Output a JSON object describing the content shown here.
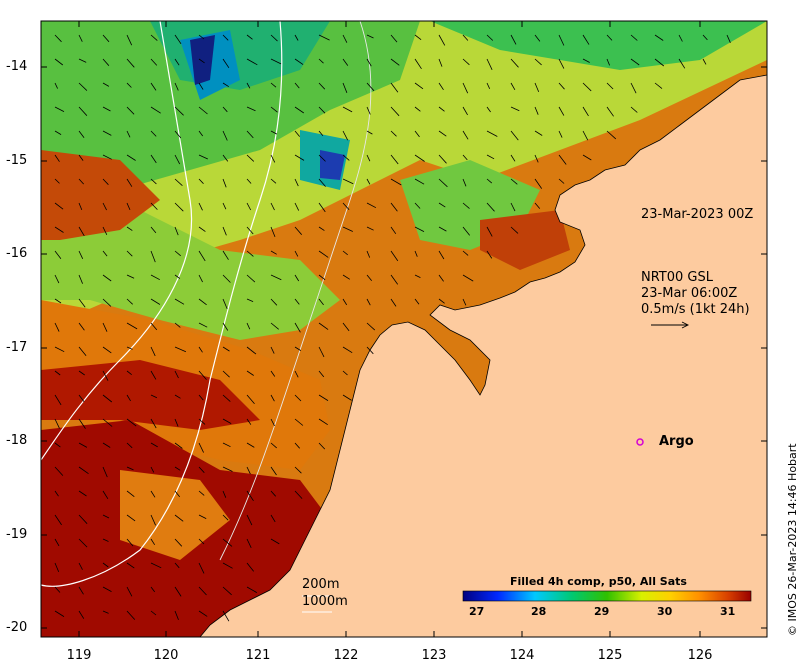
{
  "annotations": {
    "track_label": "23-Mar-2023 00Z",
    "current_title": "NRT00 GSL",
    "current_time": "23-Mar 06:00Z",
    "current_scale": "0.5m/s (1kt 24h)",
    "argo_label": "Argo",
    "contour_200": "200m",
    "contour_1000": "1000m"
  },
  "colorbar": {
    "title": "Filled 4h comp, p50, All Sats",
    "ticks": [
      "27",
      "28",
      "29",
      "30",
      "31"
    ]
  },
  "credit": "© IMOS 26-Mar-2023 14:46 Hobart",
  "axes": {
    "y_ticks": [
      "-14",
      "-15",
      "-16",
      "-17",
      "-18",
      "-19",
      "-20"
    ],
    "x_ticks": [
      "119",
      "120",
      "121",
      "122",
      "123",
      "124",
      "125",
      "126"
    ]
  },
  "colors": {
    "land": "#fdcb9f",
    "argo": "#d400d4"
  }
}
